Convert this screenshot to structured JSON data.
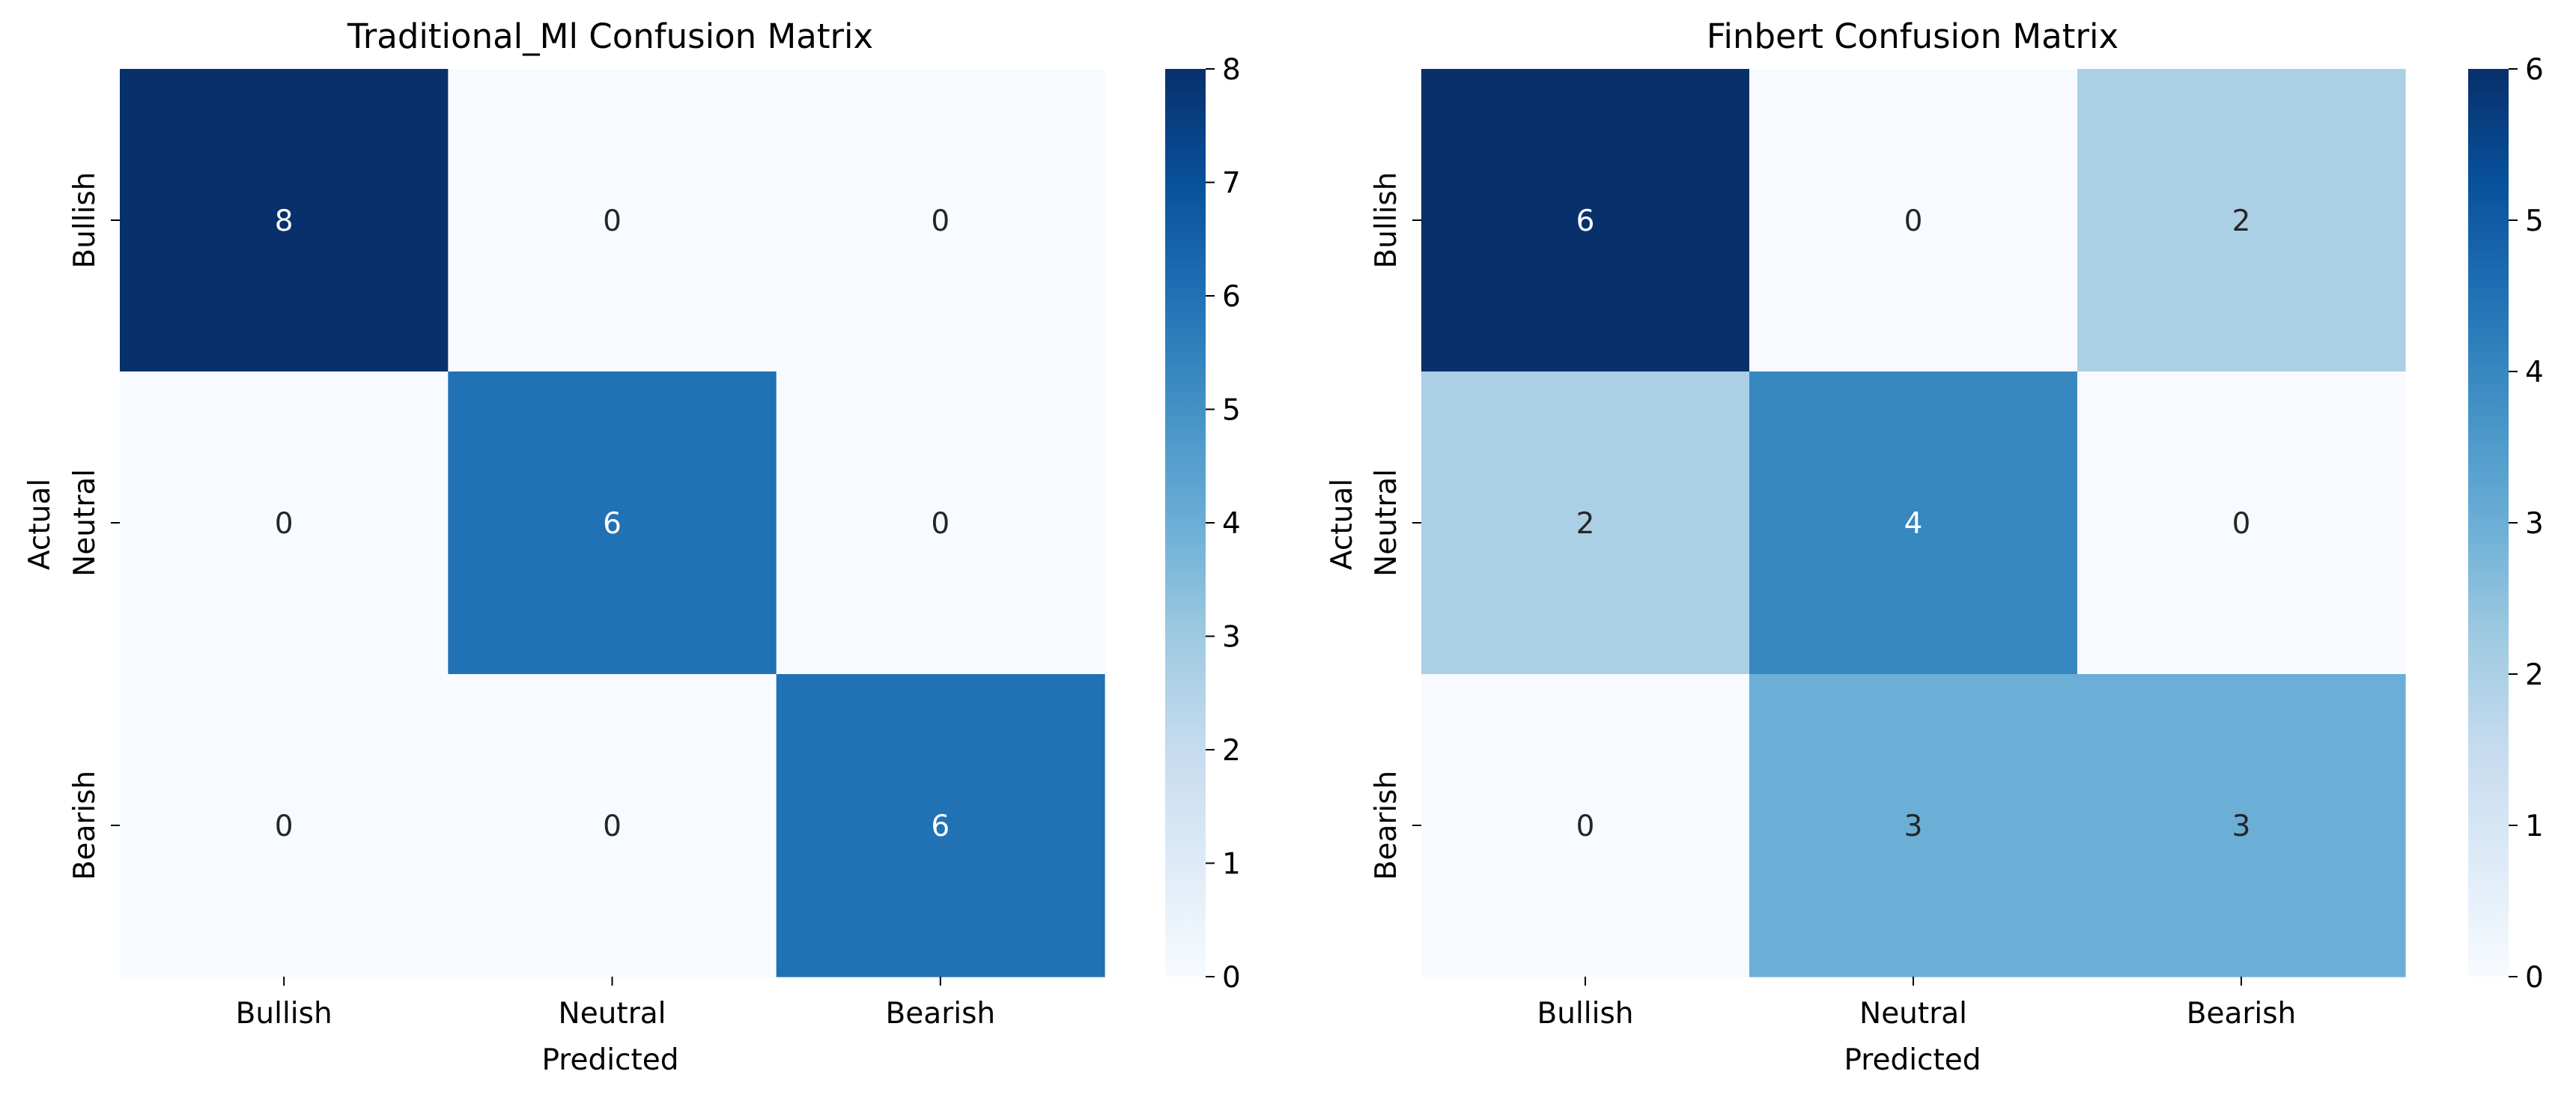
{
  "chart_data": [
    {
      "type": "heatmap",
      "title": "Traditional_Ml Confusion Matrix",
      "xlabel": "Predicted",
      "ylabel": "Actual",
      "x_categories": [
        "Bullish",
        "Neutral",
        "Bearish"
      ],
      "y_categories": [
        "Bullish",
        "Neutral",
        "Bearish"
      ],
      "values": [
        [
          8,
          0,
          0
        ],
        [
          0,
          6,
          0
        ],
        [
          0,
          0,
          6
        ]
      ],
      "colorbar": {
        "min": 0,
        "max": 8,
        "ticks": [
          "0",
          "1",
          "2",
          "3",
          "4",
          "5",
          "6",
          "7",
          "8"
        ]
      },
      "colormap": "Blues",
      "grid": false
    },
    {
      "type": "heatmap",
      "title": "Finbert Confusion Matrix",
      "xlabel": "Predicted",
      "ylabel": "Actual",
      "x_categories": [
        "Bullish",
        "Neutral",
        "Bearish"
      ],
      "y_categories": [
        "Bullish",
        "Neutral",
        "Bearish"
      ],
      "values": [
        [
          6,
          0,
          2
        ],
        [
          2,
          4,
          0
        ],
        [
          0,
          3,
          3
        ]
      ],
      "colorbar": {
        "min": 0,
        "max": 6,
        "ticks": [
          "0",
          "1",
          "2",
          "3",
          "4",
          "5",
          "6"
        ]
      },
      "colormap": "Blues",
      "grid": false
    }
  ],
  "colors": {
    "blues_low": "#f7fbff",
    "blues_high": "#08306b",
    "dark_text": "#262626",
    "light_text": "#ffffff"
  }
}
